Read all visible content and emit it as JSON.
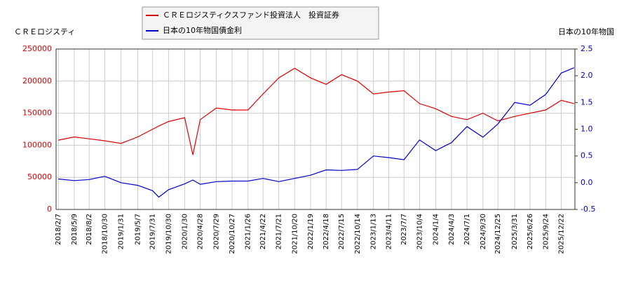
{
  "chart_data": {
    "type": "line",
    "y_label": "ＣＲＥロジスティ",
    "y2_label": "日本の10年物国",
    "x": [
      "2018/2/7",
      "2018/5/9",
      "2018/8/2",
      "2018/10/30",
      "2019/1/31",
      "2019/5/7",
      "2019/7/31",
      "2019/9/4",
      "2019/10/30",
      "2020/1/30",
      "2020/3/17",
      "2020/4/28",
      "2020/7/29",
      "2020/10/27",
      "2021/1/26",
      "2021/4/22",
      "2021/7/21",
      "2021/10/20",
      "2022/1/19",
      "2022/4/18",
      "2022/7/15",
      "2022/10/14",
      "2023/1/13",
      "2023/4/11",
      "2023/7/7",
      "2023/10/4",
      "2024/1/4",
      "2024/4/3",
      "2024/7/1",
      "2024/9/30",
      "2024/12/25",
      "2025/3/31",
      "2025/6/26",
      "2025/9/24",
      "2025/12/22",
      "2026/3/5"
    ],
    "series": [
      {
        "name": "ＣＲＥロジスティクスファンド投資法人　投資証券",
        "color": "#dd0000",
        "axis": "y",
        "values": [
          108000,
          113000,
          110000,
          107000,
          103000,
          113000,
          125000,
          130000,
          137000,
          143000,
          85000,
          140000,
          158000,
          155000,
          155000,
          180000,
          205000,
          220000,
          205000,
          195000,
          210000,
          200000,
          180000,
          183000,
          185000,
          165000,
          157000,
          145000,
          140000,
          150000,
          138000,
          145000,
          150000,
          155000,
          170000,
          165000
        ]
      },
      {
        "name": "日本の10年物国債金利",
        "color": "#0000cc",
        "axis": "y2",
        "values": [
          0.07,
          0.04,
          0.06,
          0.12,
          0.0,
          -0.05,
          -0.15,
          -0.27,
          -0.13,
          -0.02,
          0.05,
          -0.03,
          0.02,
          0.03,
          0.03,
          0.08,
          0.02,
          0.08,
          0.14,
          0.24,
          0.23,
          0.25,
          0.5,
          0.47,
          0.43,
          0.8,
          0.6,
          0.75,
          1.05,
          0.85,
          1.1,
          1.5,
          1.45,
          1.65,
          2.05,
          2.15
        ]
      }
    ],
    "xlim": [
      "2018/1/25",
      "2026/3/10"
    ],
    "xticks": [
      "2018/2/7",
      "2018/5/9",
      "2018/8/2",
      "2018/10/30",
      "2019/1/31",
      "2019/5/7",
      "2019/7/31",
      "2019/10/30",
      "2020/1/30",
      "2020/4/28",
      "2020/7/29",
      "2020/10/27",
      "2021/1/26",
      "2021/4/22",
      "2021/7/21",
      "2021/10/20",
      "2022/1/19",
      "2022/4/18",
      "2022/7/15",
      "2022/10/14",
      "2023/1/13",
      "2023/4/11",
      "2023/7/7",
      "2023/10/4",
      "2024/1/4",
      "2024/4/3",
      "2024/7/1",
      "2024/9/30",
      "2024/12/25",
      "2025/3/31",
      "2025/6/26",
      "2025/9/24",
      "2025/12/22"
    ],
    "ylim": [
      0,
      250000
    ],
    "yticks": [
      0,
      50000,
      100000,
      150000,
      200000,
      250000
    ],
    "y2lim": [
      -0.5,
      2.5
    ],
    "y2ticks": [
      -0.5,
      {
        "value": 0,
        "label": "0.0"
      },
      0.5,
      {
        "value": 1,
        "label": "1.0"
      },
      1.5,
      {
        "value": 2,
        "label": "2.0"
      },
      2.5
    ],
    "grid": true
  }
}
